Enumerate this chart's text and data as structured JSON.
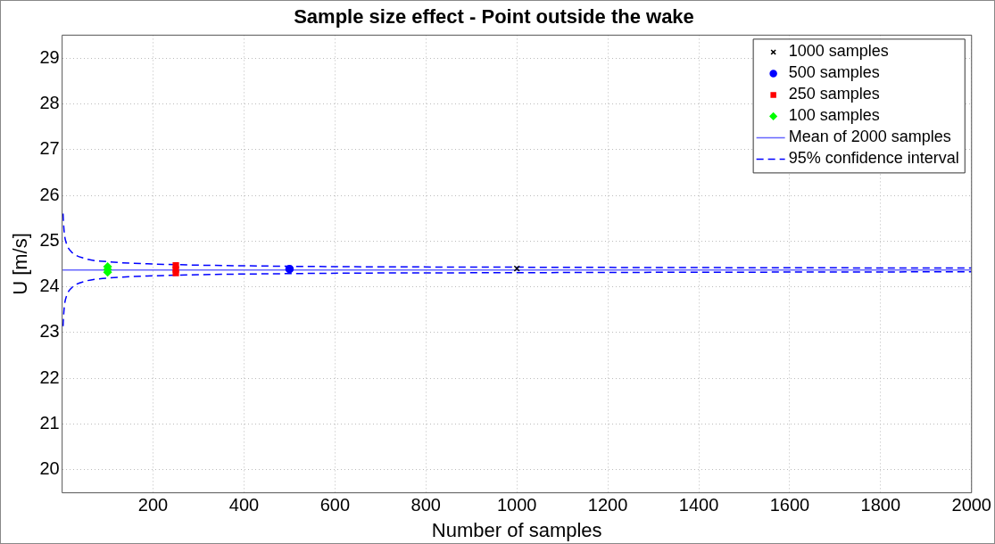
{
  "chart_data": {
    "type": "scatter",
    "title": "Sample size effect - Point outside the wake",
    "xlabel": "Number of samples",
    "ylabel": "U [m/s]",
    "xlim": [
      0,
      2000
    ],
    "xticks": [
      200,
      400,
      600,
      800,
      1000,
      1200,
      1400,
      1600,
      1800,
      2000
    ],
    "ylim": [
      19.5,
      29.5
    ],
    "yticks": [
      20,
      21,
      22,
      23,
      24,
      25,
      26,
      27,
      28,
      29
    ],
    "grid": true,
    "legend": "top right",
    "series": [
      {
        "name": "1000 samples",
        "marker": "cross",
        "color": "#000000",
        "x": [
          1000
        ],
        "values": [
          24.4
        ]
      },
      {
        "name": "500 samples",
        "marker": "circle",
        "color": "#0000ff",
        "x": [
          500
        ],
        "values": [
          24.39
        ]
      },
      {
        "name": "250 samples",
        "marker": "square",
        "color": "#ff0000",
        "x": [
          250,
          250,
          250
        ],
        "values": [
          24.3,
          24.38,
          24.47
        ]
      },
      {
        "name": "100 samples",
        "marker": "diamond",
        "color": "#00ff00",
        "x": [
          100,
          100,
          100
        ],
        "values": [
          24.32,
          24.38,
          24.44
        ]
      },
      {
        "name": "Mean of 2000 samples",
        "type": "line",
        "marker": "none",
        "line_style": "solid",
        "color": "#6666ff",
        "x": [
          1,
          2000
        ],
        "values": [
          24.37,
          24.37
        ]
      },
      {
        "name": "95% confidence interval",
        "type": "line",
        "marker": "none",
        "line_style": "dashed",
        "color": "#0000ff",
        "x": [
          2,
          3,
          5,
          10,
          20,
          50,
          100,
          200,
          500,
          1000,
          2000
        ],
        "values": [
          25.6,
          25.4,
          25.15,
          24.93,
          24.77,
          24.62,
          24.55,
          24.5,
          24.45,
          24.43,
          24.41
        ]
      },
      {
        "type": "line",
        "marker": "none",
        "line_style": "dashed",
        "color": "#0000ff",
        "x": [
          2,
          3,
          5,
          10,
          20,
          50,
          100,
          200,
          500,
          1000,
          2000
        ],
        "values": [
          23.14,
          23.34,
          23.59,
          23.81,
          23.97,
          24.12,
          24.19,
          24.24,
          24.29,
          24.31,
          24.33
        ]
      }
    ]
  }
}
